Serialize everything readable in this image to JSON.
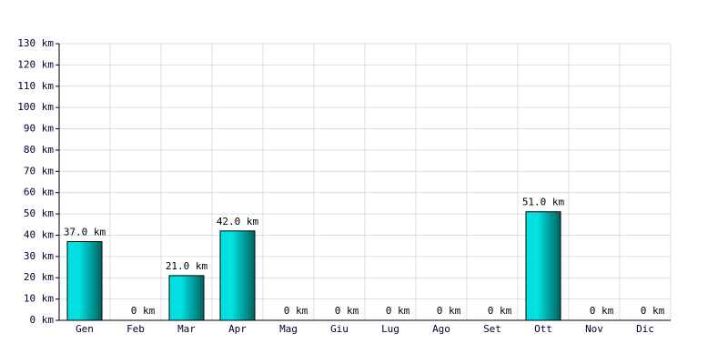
{
  "chart_data": {
    "type": "bar",
    "categories": [
      "Gen",
      "Feb",
      "Mar",
      "Apr",
      "Mag",
      "Giu",
      "Lug",
      "Ago",
      "Set",
      "Ott",
      "Nov",
      "Dic"
    ],
    "values": [
      37,
      0,
      21,
      42,
      0,
      0,
      0,
      0,
      0,
      51,
      0,
      0
    ],
    "value_labels": [
      "37.0 km",
      "0 km",
      "21.0 km",
      "42.0 km",
      "0 km",
      "0 km",
      "0 km",
      "0 km",
      "0 km",
      "51.0 km",
      "0 km",
      "0 km"
    ],
    "color": "#00e0e0",
    "ylim": [
      0,
      130
    ],
    "yticks": [
      {
        "value": 0,
        "label": "0 km"
      },
      {
        "value": 10,
        "label": "10 km"
      },
      {
        "value": 20,
        "label": "20 km"
      },
      {
        "value": 30,
        "label": "30 km"
      },
      {
        "value": 40,
        "label": "40 km"
      },
      {
        "value": 50,
        "label": "50 km"
      },
      {
        "value": 60,
        "label": "60 km"
      },
      {
        "value": 70,
        "label": "70 km"
      },
      {
        "value": 80,
        "label": "80 km"
      },
      {
        "value": 90,
        "label": "90 km"
      },
      {
        "value": 100,
        "label": "100 km"
      },
      {
        "value": 110,
        "label": "110 km"
      },
      {
        "value": 120,
        "label": "120 km"
      },
      {
        "value": 130,
        "label": "130 km"
      }
    ],
    "grid": true
  }
}
